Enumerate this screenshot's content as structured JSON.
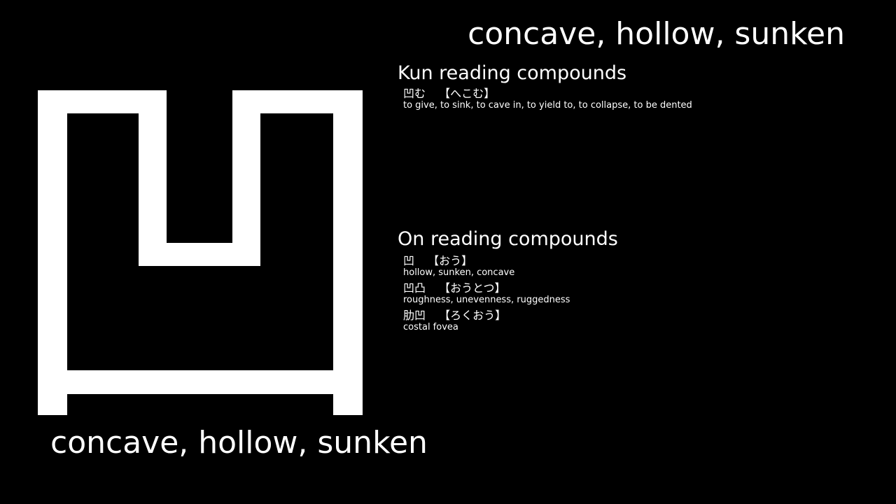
{
  "colors": {
    "background": "#000000",
    "foreground": "#ffffff"
  },
  "meaning": "concave, hollow, sunken",
  "kanji": {
    "character": "凹",
    "rendering": "white-bold-stroke-glyph"
  },
  "kun_section": {
    "heading": "Kun reading compounds",
    "compounds": [
      {
        "word": "凹む",
        "reading": "【へこむ】",
        "gloss": "to give, to sink, to cave in, to yield to, to collapse, to be dented"
      }
    ]
  },
  "on_section": {
    "heading": "On reading compounds",
    "compounds": [
      {
        "word": "凹",
        "reading": "【おう】",
        "gloss": "hollow, sunken, concave"
      },
      {
        "word": "凹凸",
        "reading": "【おうとつ】",
        "gloss": "roughness, unevenness, ruggedness"
      },
      {
        "word": "肋凹",
        "reading": "【ろくおう】",
        "gloss": "costal fovea"
      }
    ]
  }
}
